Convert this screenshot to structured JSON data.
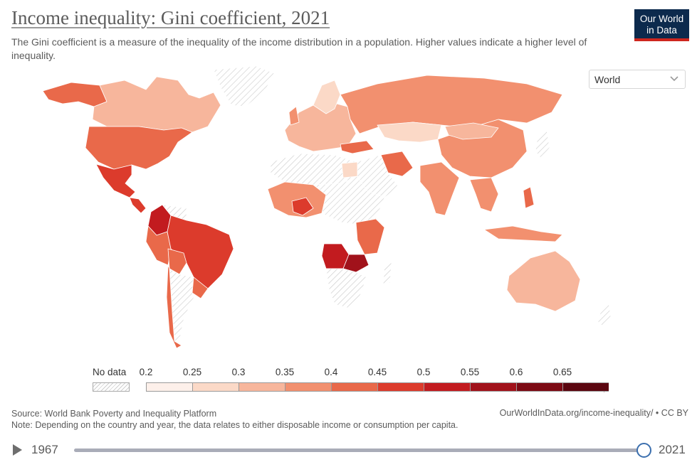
{
  "header": {
    "title": "Income inequality: Gini coefficient, 2021",
    "subtitle": "The Gini coefficient is a measure of the inequality of the income distribution in a population. Higher values indicate a higher level of inequality."
  },
  "logo": {
    "line1": "Our World",
    "line2": "in Data"
  },
  "entity_selector": {
    "value": "World"
  },
  "legend": {
    "no_data_label": "No data",
    "ticks": [
      "0.2",
      "0.25",
      "0.3",
      "0.35",
      "0.4",
      "0.45",
      "0.5",
      "0.55",
      "0.6",
      "0.65"
    ],
    "bin_colors": [
      "#fdf0ea",
      "#fbd9c7",
      "#f7b69c",
      "#f2906f",
      "#e9694a",
      "#dc3b2c",
      "#c21b1f",
      "#a1121b",
      "#7c0a14",
      "#5b0610"
    ]
  },
  "colors": {
    "no_data": "#e6e6e6",
    "land_border": "#ffffff",
    "accent": "#ce261e",
    "logo_bg": "#0c2a4d"
  },
  "chart_data": {
    "type": "choropleth",
    "metric": "Gini coefficient",
    "year": 2021,
    "regions": [
      {
        "name": "Canada",
        "bin": "0.3-0.35"
      },
      {
        "name": "United States",
        "bin": "0.4-0.45"
      },
      {
        "name": "Mexico",
        "bin": "0.45-0.5"
      },
      {
        "name": "Colombia",
        "bin": "0.5-0.55"
      },
      {
        "name": "Brazil",
        "bin": "0.5-0.55"
      },
      {
        "name": "Peru",
        "bin": "0.4-0.45"
      },
      {
        "name": "Bolivia",
        "bin": "0.4-0.45"
      },
      {
        "name": "Paraguay",
        "bin": "0.45-0.5"
      },
      {
        "name": "Uruguay",
        "bin": "0.4-0.45"
      },
      {
        "name": "Chile",
        "bin": "0.4-0.45"
      },
      {
        "name": "Russia",
        "bin": "0.35-0.4"
      },
      {
        "name": "China",
        "bin": "0.35-0.4"
      },
      {
        "name": "India",
        "bin": "0.35-0.4"
      },
      {
        "name": "Australia",
        "bin": "0.3-0.35"
      },
      {
        "name": "Angola",
        "bin": "0.5-0.55"
      },
      {
        "name": "Zambia",
        "bin": "0.55-0.6"
      },
      {
        "name": "Turkey",
        "bin": "0.4-0.45"
      },
      {
        "name": "Iran",
        "bin": "0.4-0.45"
      }
    ]
  },
  "footer": {
    "source": "Source: World Bank Poverty and Inequality Platform",
    "note": "Note: Depending on the country and year, the data relates to either disposable income or consumption per capita.",
    "url": "OurWorldInData.org/income-inequality/ • CC BY"
  },
  "timeline": {
    "start_year": "1967",
    "end_year": "2021"
  }
}
